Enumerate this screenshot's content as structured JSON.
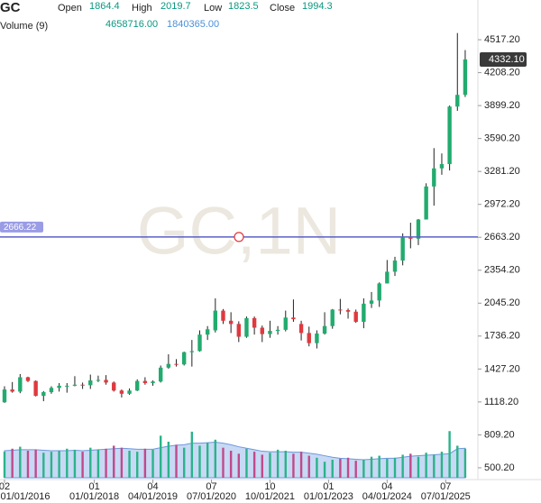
{
  "chart_data": {
    "type": "candlestick",
    "symbol": "GC",
    "watermark": "GC,1N",
    "header": {
      "open_label": "Open",
      "open": 1864.4,
      "high_label": "High",
      "high": 2019.7,
      "low_label": "Low",
      "low": 1823.5,
      "close_label": "Close",
      "close": 1994.3,
      "volume_label": "Volume (9)",
      "volume": {
        "value": 4658716,
        "label": "4658716.00"
      },
      "volume_ma": {
        "value": 1840365,
        "label": "1840365.00"
      }
    },
    "up_color": "#22ab6e",
    "down_color": "#e0393e",
    "volume_up_color": "#2bb38a",
    "volume_down_color": "#c04a8a",
    "volume_ma_color": "#8fb3ea",
    "x": [
      0,
      2,
      4,
      6,
      8,
      10,
      12,
      14,
      16,
      18,
      20,
      22,
      24,
      26,
      28,
      30,
      32,
      34,
      36,
      38,
      40,
      42,
      44,
      46,
      48,
      50,
      52,
      54,
      56,
      58,
      60,
      62,
      64,
      66,
      68,
      70,
      72,
      74,
      76,
      78,
      80,
      82,
      84,
      86,
      88,
      90,
      92,
      94,
      96,
      98,
      100,
      102,
      104,
      106,
      108,
      110,
      112,
      114,
      116,
      118
    ],
    "open": [
      1115,
      1235,
      1215,
      1350,
      1315,
      1175,
      1210,
      1250,
      1270,
      1270,
      1280,
      1275,
      1320,
      1325,
      1300,
      1225,
      1195,
      1225,
      1315,
      1295,
      1310,
      1440,
      1475,
      1470,
      1585,
      1595,
      1750,
      1790,
      1975,
      1880,
      1850,
      1730,
      1905,
      1815,
      1755,
      1785,
      1795,
      1910,
      1850,
      1765,
      1670,
      1760,
      1830,
      1985,
      1980,
      1965,
      1870,
      2040,
      2070,
      2230,
      2340,
      2445,
      2660,
      2650,
      2830,
      3140,
      3310,
      3350,
      3890,
      4000
    ],
    "high": [
      1265,
      1305,
      1380,
      1355,
      1320,
      1220,
      1265,
      1295,
      1295,
      1360,
      1300,
      1375,
      1365,
      1370,
      1310,
      1235,
      1245,
      1330,
      1350,
      1320,
      1460,
      1565,
      1520,
      1590,
      1700,
      1790,
      1830,
      2090,
      1990,
      1960,
      1875,
      1920,
      1920,
      1835,
      1880,
      1830,
      1975,
      2080,
      1880,
      1825,
      1790,
      1960,
      1990,
      2085,
      1995,
      1985,
      2090,
      2150,
      2240,
      2450,
      2480,
      2700,
      2800,
      2835,
      3170,
      3500,
      3450,
      3900,
      4580,
      4420
    ],
    "low": [
      1110,
      1205,
      1200,
      1305,
      1170,
      1125,
      1195,
      1215,
      1205,
      1265,
      1240,
      1240,
      1305,
      1280,
      1215,
      1160,
      1185,
      1220,
      1280,
      1270,
      1300,
      1430,
      1450,
      1460,
      1450,
      1590,
      1700,
      1770,
      1850,
      1765,
      1680,
      1720,
      1750,
      1680,
      1720,
      1750,
      1780,
      1870,
      1695,
      1640,
      1620,
      1750,
      1805,
      1940,
      1900,
      1860,
      1810,
      2000,
      2010,
      2230,
      2300,
      2400,
      2560,
      2590,
      2830,
      2960,
      3250,
      3290,
      3850,
      3980
    ],
    "close": [
      1235,
      1215,
      1350,
      1315,
      1175,
      1210,
      1250,
      1270,
      1270,
      1280,
      1275,
      1320,
      1325,
      1300,
      1225,
      1195,
      1225,
      1315,
      1295,
      1310,
      1440,
      1475,
      1470,
      1585,
      1595,
      1750,
      1800,
      1975,
      1880,
      1850,
      1730,
      1905,
      1815,
      1755,
      1785,
      1795,
      1910,
      1895,
      1765,
      1670,
      1760,
      1830,
      1985,
      1980,
      1965,
      1870,
      2040,
      2070,
      2230,
      2340,
      2445,
      2660,
      2650,
      2830,
      3140,
      3310,
      3350,
      3890,
      4000,
      4332.1
    ],
    "volume": [
      2600000,
      2900000,
      3100000,
      2700000,
      2800000,
      2500000,
      2600000,
      2700000,
      2900000,
      2800000,
      2600000,
      3000000,
      2800000,
      2900000,
      3200000,
      3000000,
      2700000,
      2600000,
      2900000,
      2800000,
      4200000,
      3600000,
      3300000,
      3000000,
      4600000,
      3200000,
      3500000,
      3800000,
      3000000,
      2700000,
      2400000,
      2900000,
      2600000,
      2300000,
      2500000,
      2800000,
      2700000,
      2400000,
      2600000,
      2200000,
      2000000,
      1600000,
      1800000,
      1900000,
      2000000,
      1700000,
      1800000,
      2100000,
      2200000,
      1900000,
      2000000,
      2300000,
      2400000,
      2100000,
      2500000,
      2300000,
      2600000,
      4658716,
      3200000,
      2900000
    ],
    "volume_ma": [
      2700000,
      2750000,
      2800000,
      2800000,
      2800000,
      2750000,
      2700000,
      2700000,
      2700000,
      2750000,
      2700000,
      2750000,
      2800000,
      2850000,
      2900000,
      2950000,
      2900000,
      2850000,
      2850000,
      2850000,
      3000000,
      3150000,
      3250000,
      3300000,
      3450000,
      3450000,
      3500000,
      3550000,
      3450000,
      3300000,
      3100000,
      2950000,
      2800000,
      2650000,
      2600000,
      2600000,
      2600000,
      2550000,
      2550000,
      2450000,
      2350000,
      2200000,
      2050000,
      1950000,
      1900000,
      1850000,
      1800000,
      1850000,
      1900000,
      1950000,
      1950000,
      2050000,
      2150000,
      2200000,
      2250000,
      2300000,
      2350000,
      2400000,
      2900000,
      2950000
    ],
    "xlim": [
      -1,
      121
    ],
    "ylim": [
      322,
      4890
    ],
    "volume_lim": [
      0,
      9000000
    ],
    "yticks": [
      {
        "value": 500.2,
        "label": "500.20"
      },
      {
        "value": 809.2,
        "label": "809.20"
      },
      {
        "value": 1118.2,
        "label": "1118.20"
      },
      {
        "value": 1427.2,
        "label": "1427.20"
      },
      {
        "value": 1736.2,
        "label": "1736.20"
      },
      {
        "value": 2045.2,
        "label": "2045.20"
      },
      {
        "value": 2354.2,
        "label": "2354.20"
      },
      {
        "value": 2663.2,
        "label": "2663.20"
      },
      {
        "value": 2972.2,
        "label": "2972.20"
      },
      {
        "value": 3281.2,
        "label": "3281.20"
      },
      {
        "value": 3590.2,
        "label": "3590.20"
      },
      {
        "value": 3899.2,
        "label": "3899.20"
      },
      {
        "value": 4208.2,
        "label": "4208.20"
      },
      {
        "value": 4517.2,
        "label": "4517.20"
      }
    ],
    "xticks": [
      {
        "value": 0,
        "label": "02"
      },
      {
        "value": 23,
        "label": "01"
      },
      {
        "value": 38,
        "label": "04"
      },
      {
        "value": 53,
        "label": "07"
      },
      {
        "value": 68,
        "label": "10"
      },
      {
        "value": 83,
        "label": "01"
      },
      {
        "value": 98,
        "label": "04"
      },
      {
        "value": 113,
        "label": "07"
      }
    ],
    "xticks_dates": [
      {
        "value": -1,
        "label": "01/01/2016"
      },
      {
        "value": 23,
        "label": "01/01/2018"
      },
      {
        "value": 38,
        "label": "04/01/2019"
      },
      {
        "value": 53,
        "label": "07/01/2020"
      },
      {
        "value": 68,
        "label": "10/01/2021"
      },
      {
        "value": 83,
        "label": "01/01/2023"
      },
      {
        "value": 98,
        "label": "04/01/2024"
      },
      {
        "value": 113,
        "label": "07/01/2025"
      }
    ],
    "horizontal_line": {
      "value": 2666.22,
      "color": "#5b5fc7"
    },
    "last_price": {
      "value": 4332.1,
      "label": "4332.10"
    }
  }
}
